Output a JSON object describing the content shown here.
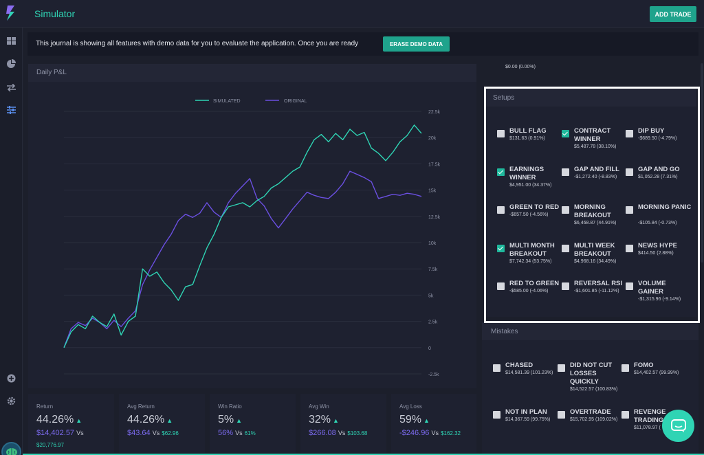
{
  "app": {
    "title": "Simulator",
    "add_trade_label": "ADD TRADE",
    "logo_icon": "lightning-logo-icon"
  },
  "sidebar": {
    "items": [
      {
        "icon": "dashboard-grid-icon"
      },
      {
        "icon": "pie-chart-icon"
      },
      {
        "icon": "swap-arrows-icon"
      },
      {
        "icon": "sliders-icon",
        "active": true
      }
    ],
    "bottom": [
      {
        "icon": "plus-circle-icon"
      },
      {
        "icon": "gear-icon"
      },
      {
        "icon": "avatar-brain-icon"
      }
    ]
  },
  "banner": {
    "text": "This journal is showing all features with demo data for you to evaluate the application. Once you are ready",
    "erase_label": "ERASE DEMO DATA"
  },
  "chart_panel": {
    "title": "Daily P&L"
  },
  "chart_data": {
    "type": "line",
    "title": "",
    "xlabel": "",
    "ylabel": "",
    "ylim": [
      -2500,
      22500
    ],
    "y_ticks": [
      "22.5k",
      "20k",
      "17.5k",
      "15k",
      "12.5k",
      "10k",
      "7.5k",
      "5k",
      "2.5k",
      "0",
      "-2.5k"
    ],
    "grid": true,
    "legend": "top-center",
    "colors": {
      "SIMULATED": "#2fd4b4",
      "ORIGINAL": "#6a4fe0"
    },
    "series": [
      {
        "name": "SIMULATED",
        "values": [
          0,
          1500,
          2200,
          1800,
          3000,
          2400,
          2000,
          3200,
          1200,
          2500,
          3000,
          7500,
          6800,
          7200,
          6200,
          5500,
          4500,
          5800,
          6000,
          7800,
          9500,
          10800,
          12400,
          13400,
          13600,
          13800,
          13400,
          14000,
          14400,
          15200,
          15600,
          16200,
          16800,
          17200,
          18600,
          19800,
          20300,
          19600,
          20400,
          19800,
          20800,
          20200,
          20500,
          19000,
          18500,
          17800,
          18600,
          19600,
          20200,
          21200,
          20400
        ]
      },
      {
        "name": "ORIGINAL",
        "values": [
          0,
          1800,
          2400,
          2100,
          2800,
          2400,
          1800,
          2600,
          2000,
          2800,
          3500,
          6000,
          7400,
          8600,
          9800,
          10800,
          12100,
          12700,
          12400,
          12800,
          13800,
          12900,
          12400,
          13800,
          14700,
          15400,
          16100,
          14200,
          13500,
          12300,
          11400,
          12300,
          13200,
          14000,
          14800,
          14500,
          14300,
          14200,
          14800,
          15600,
          16800,
          16500,
          16200,
          15800,
          14200,
          14400,
          14600,
          14500,
          14700,
          14600,
          14400
        ]
      }
    ]
  },
  "stats": [
    {
      "label": "Return",
      "value": "44.26%",
      "sub_a": "$14,402.57",
      "sub_vs": "Vs",
      "sub_b": "",
      "sub2": "$20,776.97"
    },
    {
      "label": "Avg Return",
      "value": "44.26%",
      "sub_a": "$43.64",
      "sub_vs": "Vs",
      "sub_b": "$62.96",
      "sub2": ""
    },
    {
      "label": "Win Ratio",
      "value": "5%",
      "sub_a": "56%",
      "sub_vs": "Vs",
      "sub_b": "61%",
      "sub2": ""
    },
    {
      "label": "Avg Win",
      "value": "32%",
      "sub_a": "$266.08",
      "sub_vs": "Vs",
      "sub_b": "$103.68",
      "sub2": ""
    },
    {
      "label": "Avg Loss",
      "value": "59%",
      "sub_a": "-$246.96",
      "sub_vs": "Vs",
      "sub_b": "$162.32",
      "sub2": ""
    }
  ],
  "top_value": "$0.00 (0.00%)",
  "setups": {
    "title": "Setups",
    "items": [
      {
        "name": "BULL FLAG",
        "value": "$131.63 (0.91%)",
        "checked": false
      },
      {
        "name": "CONTRACT WINNER",
        "value": "$5,487.78 (38.10%)",
        "checked": true
      },
      {
        "name": "DIP BUY",
        "value": "-$689.50 (-4.79%)",
        "checked": false
      },
      {
        "name": "EARNINGS WINNER",
        "value": "$4,951.00 (34.37%)",
        "checked": true
      },
      {
        "name": "GAP AND FILL",
        "value": "-$1,272.40 (-8.83%)",
        "checked": false
      },
      {
        "name": "GAP AND GO",
        "value": "$1,052.28 (7.31%)",
        "checked": false
      },
      {
        "name": "GREEN TO RED",
        "value": "-$657.50 (-4.56%)",
        "checked": false
      },
      {
        "name": "MORNING BREAKOUT",
        "value": "$6,468.87 (44.91%)",
        "checked": false
      },
      {
        "name": "MORNING PANIC",
        "value": "-$105.84 (-0.73%)",
        "checked": false
      },
      {
        "name": "MULTI MONTH BREAKOUT",
        "value": "$7,742.34 (53.75%)",
        "checked": true
      },
      {
        "name": "MULTI WEEK BREAKOUT",
        "value": "$4,968.16 (34.49%)",
        "checked": false
      },
      {
        "name": "NEWS HYPE",
        "value": "$414.50 (2.88%)",
        "checked": false
      },
      {
        "name": "RED TO GREEN",
        "value": "-$585.00 (-4.06%)",
        "checked": false
      },
      {
        "name": "REVERSAL RSI",
        "value": "-$1,601.85 (-11.12%)",
        "checked": false
      },
      {
        "name": "VOLUME GAINER",
        "value": "-$1,315.96 (-9.14%)",
        "checked": false
      }
    ]
  },
  "mistakes": {
    "title": "Mistakes",
    "items": [
      {
        "name": "CHASED",
        "value": "$14,581.39 (101.23%)",
        "checked": false
      },
      {
        "name": "DID NOT CUT LOSSES QUICKLY",
        "value": "$14,522.57 (100.83%)",
        "checked": false
      },
      {
        "name": "FOMO",
        "value": "$14,402.57 (99.99%)",
        "checked": false
      },
      {
        "name": "NOT IN PLAN",
        "value": "$14,367.59 (99.75%)",
        "checked": false
      },
      {
        "name": "OVERTRADE",
        "value": "$15,702.95 (109.02%)",
        "checked": false
      },
      {
        "name": "REVENGE TRADING",
        "value": "$11,078.97 (",
        "checked": false
      }
    ]
  },
  "chat": {
    "icon": "chat-bubble-icon"
  }
}
